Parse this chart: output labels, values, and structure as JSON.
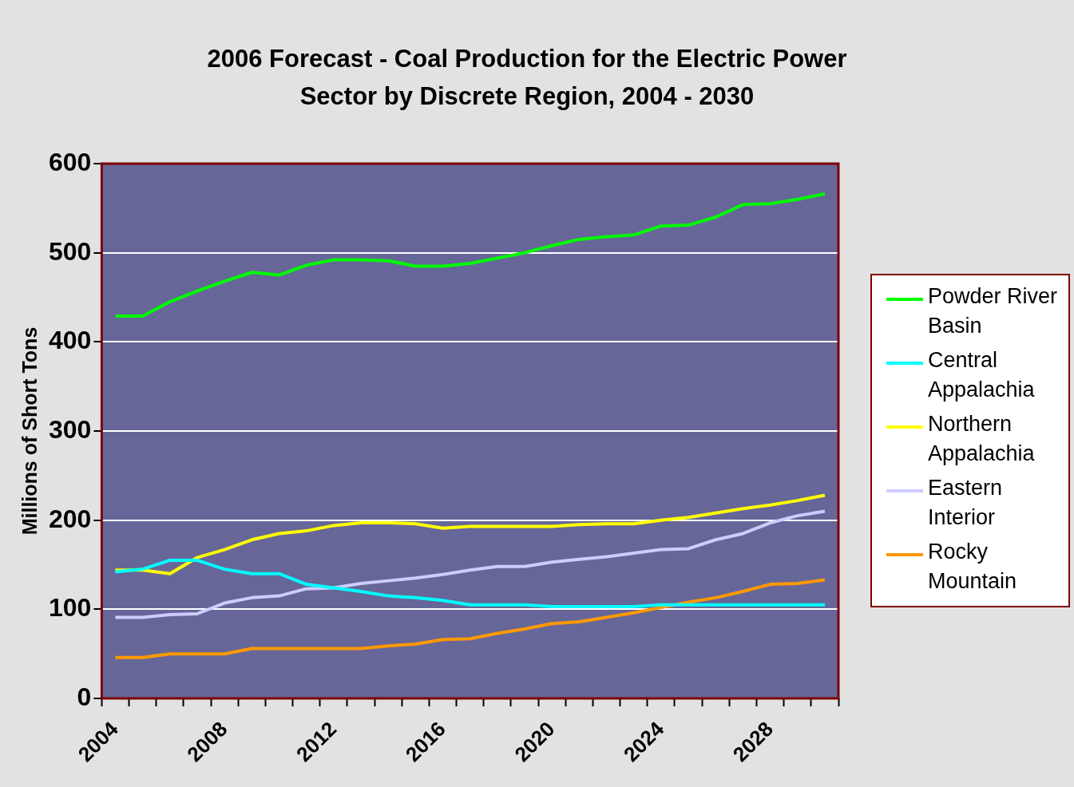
{
  "chart_data": {
    "type": "line",
    "title": "2006 Forecast - Coal Production for the Electric Power Sector by Discrete Region, 2004 - 2030",
    "ylabel": "Millions of Short Tons",
    "categories": [
      "2004",
      null,
      null,
      null,
      "2008",
      null,
      null,
      null,
      "2012",
      null,
      null,
      null,
      "2016",
      null,
      null,
      null,
      "2020",
      null,
      null,
      null,
      "2024",
      null,
      null,
      null,
      "2028",
      null,
      null
    ],
    "ylim": [
      0,
      600
    ],
    "yticks": [
      0,
      100,
      200,
      300,
      400,
      500,
      600
    ],
    "grid": "y",
    "legend": "right",
    "marker": "none",
    "line_style": "solid",
    "series": [
      {
        "name": "Powder River Basin",
        "color": "#00ff00",
        "values": [
          429,
          429,
          445,
          457,
          468,
          478,
          475,
          486,
          492,
          492,
          491,
          485,
          485,
          488,
          494,
          500,
          508,
          515,
          518,
          520,
          530,
          531,
          540,
          554,
          555,
          560,
          566
        ]
      },
      {
        "name": "Central Appalachia",
        "color": "#00ffff",
        "values": [
          142,
          145,
          155,
          155,
          145,
          140,
          140,
          128,
          124,
          120,
          115,
          113,
          110,
          105,
          105,
          105,
          103,
          103,
          103,
          103,
          105,
          105,
          105,
          105,
          105,
          105,
          105
        ]
      },
      {
        "name": "Northern Appalachia",
        "color": "#ffff00",
        "values": [
          144,
          144,
          140,
          158,
          167,
          178,
          185,
          188,
          194,
          197,
          197,
          196,
          191,
          193,
          193,
          193,
          193,
          195,
          196,
          196,
          200,
          203,
          208,
          213,
          217,
          222,
          228
        ]
      },
      {
        "name": "Eastern Interior",
        "color": "#ccccff",
        "values": [
          91,
          91,
          94,
          95,
          107,
          113,
          115,
          123,
          124,
          129,
          132,
          135,
          139,
          144,
          148,
          148,
          153,
          156,
          159,
          163,
          167,
          168,
          178,
          185,
          197,
          205,
          210
        ]
      },
      {
        "name": "Rocky Mountain",
        "color": "#ff9900",
        "values": [
          46,
          46,
          50,
          50,
          50,
          56,
          56,
          56,
          56,
          56,
          59,
          61,
          66,
          67,
          73,
          78,
          84,
          86,
          91,
          96,
          102,
          108,
          113,
          120,
          128,
          129,
          133
        ]
      }
    ]
  }
}
